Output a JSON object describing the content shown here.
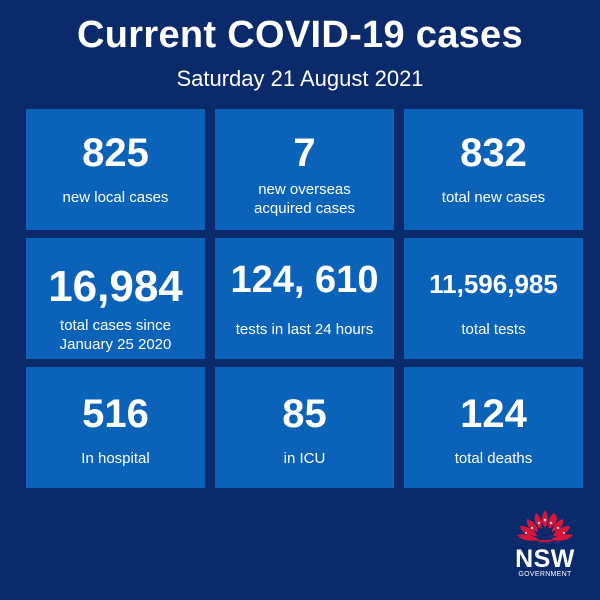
{
  "header": {
    "title": "Current COVID-19 cases",
    "date": "Saturday 21 August 2021"
  },
  "tiles": [
    {
      "value": "825",
      "label": "new local cases"
    },
    {
      "value": "7",
      "label": "new overseas\nacquired cases"
    },
    {
      "value": "832",
      "label": "total new cases"
    },
    {
      "value": "16,984",
      "label": "total cases since\nJanuary 25 2020"
    },
    {
      "value": "124, 610",
      "label": "tests in last 24 hours"
    },
    {
      "value": "11,596,985",
      "label": "total tests"
    },
    {
      "value": "516",
      "label": "In hospital"
    },
    {
      "value": "85",
      "label": "in ICU"
    },
    {
      "value": "124",
      "label": "total deaths"
    }
  ],
  "logo": {
    "name": "NSW",
    "sub": "GOVERNMENT",
    "icon": "waratah-flower-icon"
  },
  "colors": {
    "background": "#0b2a6b",
    "tile": "#0a62b9",
    "logo_red": "#d7153a"
  }
}
